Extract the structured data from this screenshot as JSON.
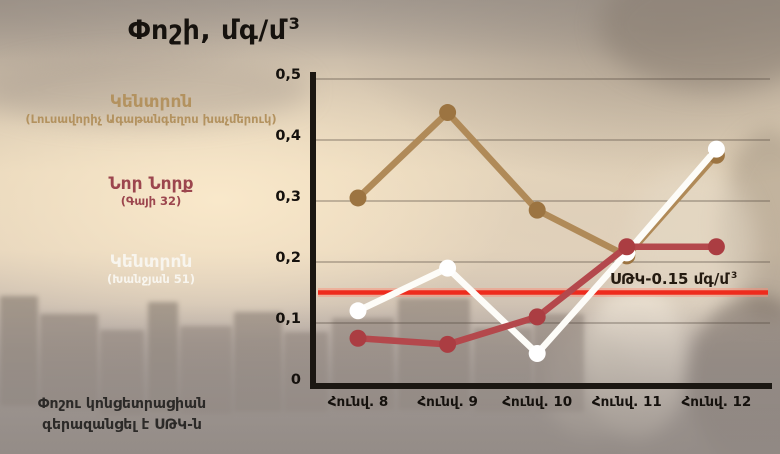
{
  "title": {
    "text": "Փոշի, մգ/մ",
    "sup": "3"
  },
  "legend": [
    {
      "name": "Կենտրոն",
      "detail": "(Լուսավորիչ Ագաթանգեղոս խաչմերուկ)",
      "color": "#b3925f"
    },
    {
      "name": "Նոր Նորք",
      "detail": "(Գայի 32)",
      "color": "#9c464e"
    },
    {
      "name": "Կենտրոն",
      "detail": "(Խանջյան 51)",
      "color": "#f8f5ee"
    }
  ],
  "note": {
    "line1": "Փոշու կոնցետրացիան",
    "line2": "գերազանցել է ՍԹԿ-ն"
  },
  "threshold_label": {
    "text": "ՍԹԿ-0.15 մգ/մ",
    "sup": "3"
  },
  "chart_data": {
    "type": "line",
    "title": "Փոշի, մգ/մ³",
    "categories": [
      "Հունվ. 8",
      "Հունվ. 9",
      "Հունվ. 10",
      "Հունվ. 11",
      "Հունվ. 12"
    ],
    "series": [
      {
        "name": "Կենտրոն (Լուսավորիչ Ագաթանգեղոս խաչմերուկ)",
        "color": "#b08a58",
        "marker_color": "#9c7441",
        "values": [
          0.305,
          0.445,
          0.285,
          0.21,
          0.375
        ]
      },
      {
        "name": "Կենտրոն (Խանջյան 51)",
        "color": "#fdfcf8",
        "marker_color": "#ffffff",
        "values": [
          0.12,
          0.19,
          0.05,
          0.215,
          0.385
        ]
      },
      {
        "name": "Նոր Նորք (Գայի 32)",
        "color": "#b4484c",
        "marker_color": "#ab3d42",
        "values": [
          0.075,
          0.065,
          0.11,
          0.225,
          0.225
        ]
      }
    ],
    "threshold": {
      "value": 0.15,
      "color": "#ee2b1d",
      "label": "ՍԹԿ-0.15 մգ/մ³"
    },
    "ylim": [
      0,
      0.5
    ],
    "ytick_step": 0.1,
    "ytick_labels": [
      "0",
      "0,1",
      "0,2",
      "0,3",
      "0,4",
      "0,5"
    ],
    "grid": "horizontal",
    "legend_position": "left"
  }
}
